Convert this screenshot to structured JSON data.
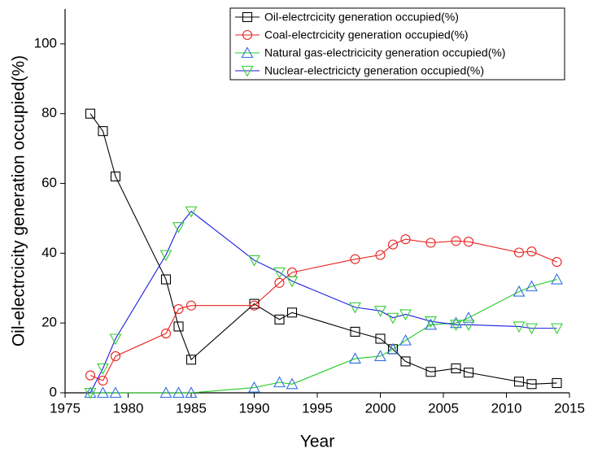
{
  "chart_data": {
    "type": "line",
    "x_label": "Year",
    "y_label": "Oil-electrcicity generation occupied(%)",
    "x": [
      1977,
      1978,
      1979,
      1983,
      1984,
      1985,
      1990,
      1992,
      1993,
      1998,
      2000,
      2001,
      2002,
      2004,
      2006,
      2007,
      2011,
      2012,
      2014
    ],
    "series": [
      {
        "name": "Oil-electrcicity generation occupied(%)",
        "color": "#000000",
        "marker": "square",
        "marker_color": "#000000",
        "values": [
          80,
          75,
          62,
          32.5,
          19,
          9.5,
          25.5,
          21,
          23,
          17.5,
          15.5,
          12.5,
          9,
          6,
          7,
          5.8,
          3.2,
          2.5,
          2.8
        ]
      },
      {
        "name": "Coal-electrcicity generation occupied(%)",
        "color": "#e8221f",
        "marker": "circle",
        "marker_color": "#e8221f",
        "values": [
          5,
          3.5,
          10.5,
          17,
          24,
          25,
          25,
          31.5,
          34.5,
          38.3,
          39.5,
          42.5,
          44,
          43,
          43.5,
          43.3,
          40.2,
          40.5,
          37.5
        ]
      },
      {
        "name": "Natural gas-electricicity generation occupied(%)",
        "color": "#22cc22",
        "marker": "triangle-up",
        "marker_color": "#2f6fe0",
        "values": [
          0,
          0,
          0,
          0,
          0,
          0,
          1.5,
          3,
          2.5,
          9.8,
          10.5,
          12.5,
          15,
          19.5,
          20,
          21.5,
          29,
          30.5,
          32.5
        ]
      },
      {
        "name": "Nuclear-electricicty generation occupied(%)",
        "color": "#1a1ae6",
        "marker": "triangle-down",
        "marker_color": "#33cc33",
        "values": [
          0,
          7,
          15.5,
          39.5,
          47.5,
          52,
          38,
          34.5,
          32,
          24.5,
          23.5,
          21.5,
          22.5,
          20.5,
          19.5,
          19.5,
          19,
          18.5,
          18.5
        ]
      }
    ],
    "xlim": [
      1975,
      2015
    ],
    "xticks": [
      1975,
      1980,
      1985,
      1990,
      1995,
      2000,
      2005,
      2010,
      2015
    ],
    "ylim": [
      0,
      110
    ],
    "yticks": [
      0,
      20,
      40,
      60,
      80,
      100
    ],
    "legend": "upper right",
    "grid": false
  }
}
